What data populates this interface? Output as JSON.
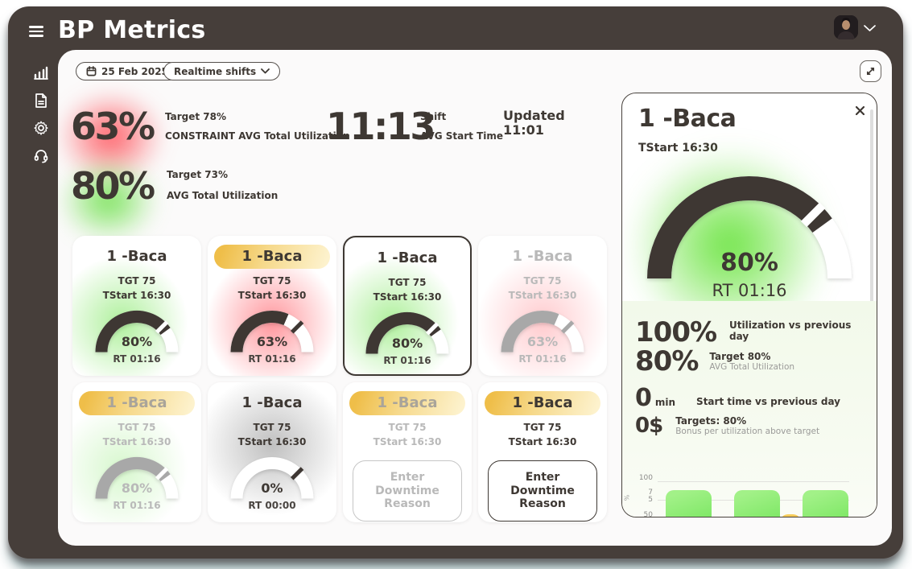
{
  "app": {
    "title": "BP Metrics"
  },
  "sidebar": {
    "items": [
      {
        "icon": "bar-chart-icon"
      },
      {
        "icon": "document-icon"
      },
      {
        "icon": "settings-gear-icon"
      },
      {
        "icon": "headset-icon"
      }
    ]
  },
  "toolbar": {
    "date": "25 Feb 2025",
    "shift_filter": "Realtime shifts"
  },
  "summary": {
    "constraint": {
      "value": "63%",
      "target": "Target 78%",
      "label": "CONSTRAINT AVG Total Utilization"
    },
    "avg": {
      "value": "80%",
      "target": "Target 73%",
      "label": "AVG Total Utilization"
    },
    "shift_start": {
      "value": "11:13",
      "label_top": "Shift",
      "label_bottom": "AVG Start Time"
    },
    "updated": {
      "label": "Updated",
      "time": "11:01"
    }
  },
  "cards": [
    {
      "title": "1 -Baca",
      "tgt": "TGT 75",
      "tstart": "TStart 16:30",
      "kind": "gauge",
      "percent": 80,
      "percent_label": "80%",
      "rt": "RT 01:16",
      "tick": 75,
      "bg": "green",
      "pill": false,
      "muted": false,
      "selected": false
    },
    {
      "title": "1 -Baca",
      "tgt": "TGT 75",
      "tstart": "TStart 16:30",
      "kind": "gauge",
      "percent": 63,
      "percent_label": "63%",
      "rt": "RT 01:16",
      "tick": 75,
      "bg": "red",
      "pill": true,
      "muted": false,
      "selected": false
    },
    {
      "title": "1 -Baca",
      "tgt": "TGT 75",
      "tstart": "TStart 16:30",
      "kind": "gauge",
      "percent": 80,
      "percent_label": "80%",
      "rt": "RT 01:16",
      "tick": 75,
      "bg": "green",
      "pill": false,
      "muted": false,
      "selected": true
    },
    {
      "title": "1 -Baca",
      "tgt": "TGT 75",
      "tstart": "TStart 16:30",
      "kind": "gauge",
      "percent": 63,
      "percent_label": "63%",
      "rt": "RT 01:16",
      "tick": 75,
      "bg": "red",
      "pill": false,
      "muted": true,
      "selected": false
    },
    {
      "title": "1 -Baca",
      "tgt": "TGT 75",
      "tstart": "TStart 16:30",
      "kind": "gauge",
      "percent": 80,
      "percent_label": "80%",
      "rt": "RT 01:16",
      "tick": 75,
      "bg": "green",
      "pill": true,
      "muted": true,
      "selected": false
    },
    {
      "title": "1 -Baca",
      "tgt": "TGT 75",
      "tstart": "TStart 16:30",
      "kind": "gauge",
      "percent": 0,
      "percent_label": "0%",
      "rt": "RT 00:00",
      "tick": 75,
      "bg": "gray",
      "pill": false,
      "muted": false,
      "selected": false
    },
    {
      "title": "1 -Baca",
      "tgt": "TGT 75",
      "tstart": "TStart 16:30",
      "kind": "downtime",
      "button": "Enter Downtime Reason",
      "bg": "white",
      "pill": true,
      "muted": true,
      "selected": false
    },
    {
      "title": "1 -Baca",
      "tgt": "TGT 75",
      "tstart": "TStart 16:30",
      "kind": "downtime",
      "button": "Enter Downtime Reason",
      "bg": "white",
      "pill": true,
      "muted": false,
      "selected": false
    }
  ],
  "detail": {
    "title": "1 -Baca",
    "tstart": "TStart 16:30",
    "percent": 80,
    "percent_label": "80%",
    "rt": "RT 01:16",
    "tick": 75,
    "stats": [
      {
        "value": "100%",
        "label": "Utilization vs previous day"
      },
      {
        "value": "80%",
        "label": "Target 80%",
        "sub": "AVG Total Utilization"
      },
      {
        "value": "0",
        "unit": "min",
        "label": "Start time vs previous day"
      },
      {
        "value": "0$",
        "label": "Targets: 80%",
        "sub": "Bonus per utilization above target"
      }
    ]
  },
  "chart_data": {
    "type": "bar",
    "title": "Detail panel mini utilization chart (clipped at panel bottom)",
    "values": [
      88,
      88,
      55,
      88
    ],
    "colors": [
      "green",
      "green",
      "yellow",
      "green"
    ],
    "y_ticks": [
      "100",
      "75",
      "50"
    ],
    "y_unit": "%",
    "ylim": [
      50,
      100
    ]
  },
  "colors": {
    "frame_dark": "#463e3a",
    "ink": "#3e3833",
    "green": "#76e556",
    "red": "#ff5862",
    "yellow_pill": "#efbe49",
    "muted": "#b9b9b9"
  }
}
